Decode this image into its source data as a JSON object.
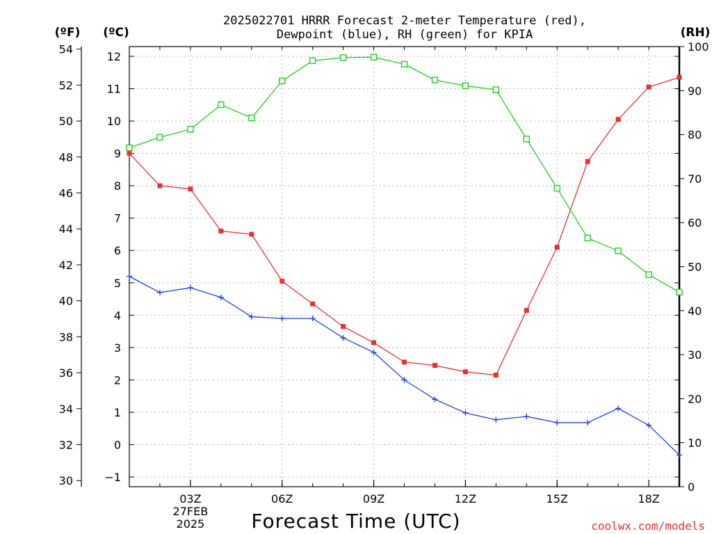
{
  "chart_data": {
    "type": "line",
    "title_line1": "2025022701 HRRR Forecast 2-meter Temperature (red),",
    "title_line2": "Dewpoint (blue), RH (green) for KPIA",
    "xlabel": "Forecast Time (UTC)",
    "unit_left_outer": "(ºF)",
    "unit_left_inner": "(ºC)",
    "unit_right": "(RH)",
    "credit": "coolwx.com/models",
    "x_hours": [
      1,
      2,
      3,
      4,
      5,
      6,
      7,
      8,
      9,
      10,
      11,
      12,
      13,
      14,
      15,
      16,
      17,
      18,
      19
    ],
    "xlim": [
      1,
      19
    ],
    "x_ticks": [
      {
        "hour": 3,
        "lines": [
          "03Z",
          "27FEB",
          "2025"
        ]
      },
      {
        "hour": 6,
        "lines": [
          "06Z"
        ]
      },
      {
        "hour": 9,
        "lines": [
          "09Z"
        ]
      },
      {
        "hour": 12,
        "lines": [
          "12Z"
        ]
      },
      {
        "hour": 15,
        "lines": [
          "15Z"
        ]
      },
      {
        "hour": 18,
        "lines": [
          "18Z"
        ]
      }
    ],
    "celsius_axis": {
      "ylim": [
        -1.3,
        12.3
      ],
      "ticks": [
        "-1",
        "0",
        "1",
        "2",
        "3",
        "4",
        "5",
        "6",
        "7",
        "8",
        "9",
        "10",
        "11",
        "12"
      ]
    },
    "fahrenheit_axis": {
      "ticks": [
        "30",
        "32",
        "34",
        "36",
        "38",
        "40",
        "42",
        "44",
        "46",
        "48",
        "50",
        "52",
        "54"
      ]
    },
    "rh_axis": {
      "ylim": [
        0,
        100
      ],
      "ticks": [
        "0",
        "10",
        "20",
        "30",
        "40",
        "50",
        "60",
        "70",
        "80",
        "90",
        "100"
      ]
    },
    "grid": true,
    "series": [
      {
        "key": "temperature",
        "axis": "celsius",
        "color": "#e83030",
        "marker": "filled-square",
        "values": [
          9.0,
          8.0,
          7.9,
          6.6,
          6.5,
          5.05,
          4.35,
          3.65,
          3.15,
          2.55,
          2.45,
          2.25,
          2.15,
          4.15,
          6.1,
          8.75,
          10.05,
          11.05,
          11.35
        ]
      },
      {
        "key": "dewpoint",
        "axis": "celsius",
        "color": "#2040e8",
        "marker": "plus",
        "values": [
          5.2,
          4.7,
          4.85,
          4.55,
          3.95,
          3.9,
          3.9,
          3.3,
          2.85,
          2.0,
          1.4,
          0.98,
          0.77,
          0.87,
          0.68,
          0.68,
          1.12,
          0.6,
          -0.32
        ]
      },
      {
        "key": "rh",
        "axis": "rh",
        "color": "#20d020",
        "marker": "open-square",
        "values": [
          77,
          79.4,
          81.2,
          86.8,
          83.8,
          92.2,
          96.8,
          97.5,
          97.6,
          96.0,
          92.4,
          91.1,
          90.2,
          79.0,
          67.8,
          56.5,
          53.6,
          48.2,
          44.2
        ]
      }
    ]
  }
}
